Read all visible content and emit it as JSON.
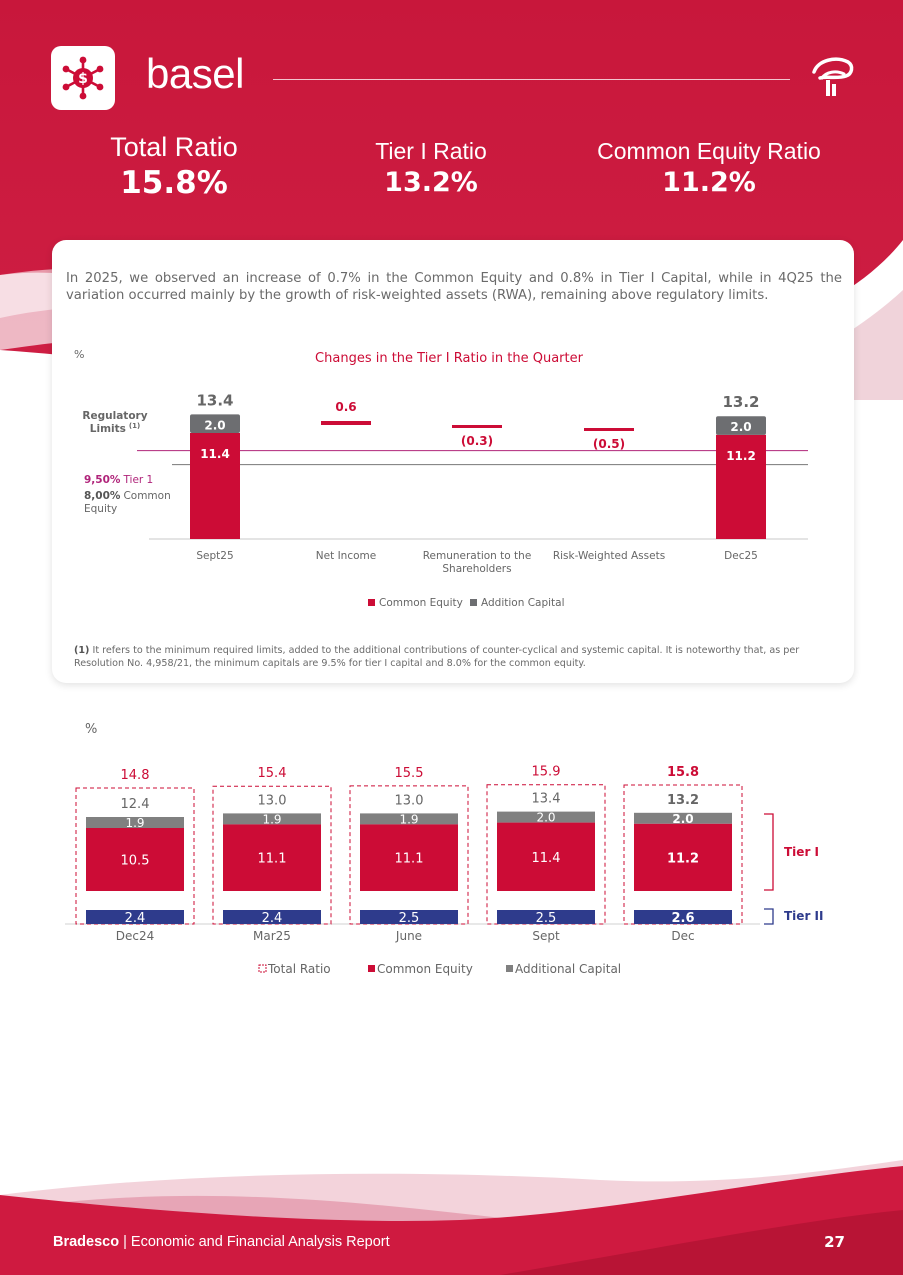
{
  "header": {
    "title": "basel"
  },
  "kpis": {
    "total_ratio": {
      "label": "Total Ratio",
      "value": "15.8%"
    },
    "tier1_ratio": {
      "label": "Tier I Ratio",
      "value": "13.2%"
    },
    "common_equity_ratio": {
      "label": "Common Equity Ratio",
      "value": "11.2%"
    }
  },
  "card": {
    "intro": "In 2025, we observed an increase of 0.7% in the Common Equity and 0.8% in Tier I Capital, while in 4Q25 the variation occurred mainly by the growth of risk-weighted assets (RWA), remaining above regulatory limits.",
    "footnote_marker": "(1)",
    "footnote": "It refers to the minimum required limits, added to the additional contributions of counter-cyclical and systemic capital. It is noteworthy that, as per Resolution No. 4,958/21, the minimum capitals are 9.5% for tier I capital and 8.0% for the common equity."
  },
  "chart_data": [
    {
      "type": "bar",
      "title": "Changes in the Tier I Ratio in the Quarter",
      "unit_label": "%",
      "categories": [
        "Sept25",
        "Net Income",
        "Remuneration to the Shareholders",
        "Risk-Weighted Assets",
        "Dec25"
      ],
      "series": [
        {
          "name": "Common Equity",
          "values": [
            11.4,
            0.6,
            -0.3,
            -0.5,
            11.2
          ]
        },
        {
          "name": "Addition Capital",
          "values": [
            2.0,
            null,
            null,
            null,
            2.0
          ]
        }
      ],
      "totals": [
        13.4,
        null,
        null,
        null,
        13.2
      ],
      "data_labels": [
        "11.4",
        "0.6",
        "(0.3)",
        "(0.5)",
        "11.2"
      ],
      "regulatory_limits": {
        "label": "Regulatory Limits",
        "label_sup": "(1)",
        "tier1": {
          "value_text": "9,50%",
          "name": "Tier 1",
          "value": 9.5
        },
        "common_equity": {
          "value_text": "8,00%",
          "name": "Common Equity",
          "value": 8.0
        }
      },
      "legend": [
        "Common Equity",
        "Addition Capital"
      ],
      "legend_position": "bottom",
      "colors": {
        "common_equity": "#cc0c36",
        "addition_capital": "#6d6e71",
        "tier1_line": "#b0247a",
        "ce_line": "#777777"
      }
    },
    {
      "type": "bar",
      "stacked": true,
      "unit_label": "%",
      "categories": [
        "Dec24",
        "Mar25",
        "June",
        "Sept",
        "Dec"
      ],
      "series": [
        {
          "name": "Common Equity",
          "values": [
            10.5,
            11.1,
            11.1,
            11.4,
            11.2
          ]
        },
        {
          "name": "Additional Capital",
          "values": [
            1.9,
            1.9,
            1.9,
            2.0,
            2.0
          ]
        },
        {
          "name": "Tier II",
          "values": [
            2.4,
            2.4,
            2.5,
            2.5,
            2.6
          ]
        }
      ],
      "tier1_totals": [
        12.4,
        13.0,
        13.0,
        13.4,
        13.2
      ],
      "total_ratio": [
        14.8,
        15.4,
        15.5,
        15.9,
        15.8
      ],
      "brackets": {
        "tier1": "Tier I",
        "tier2": "Tier II"
      },
      "legend": [
        "Total Ratio",
        "Common Equity",
        "Additional Capital"
      ],
      "legend_position": "bottom",
      "colors": {
        "common_equity": "#cc0c36",
        "additional_capital": "#808080",
        "tier2": "#2e3b8c",
        "total_ratio": "#cc0c36"
      }
    }
  ],
  "footer": {
    "brand": "Bradesco",
    "separator": " | ",
    "report": "Economic and Financial Analysis Report",
    "page": "27"
  }
}
